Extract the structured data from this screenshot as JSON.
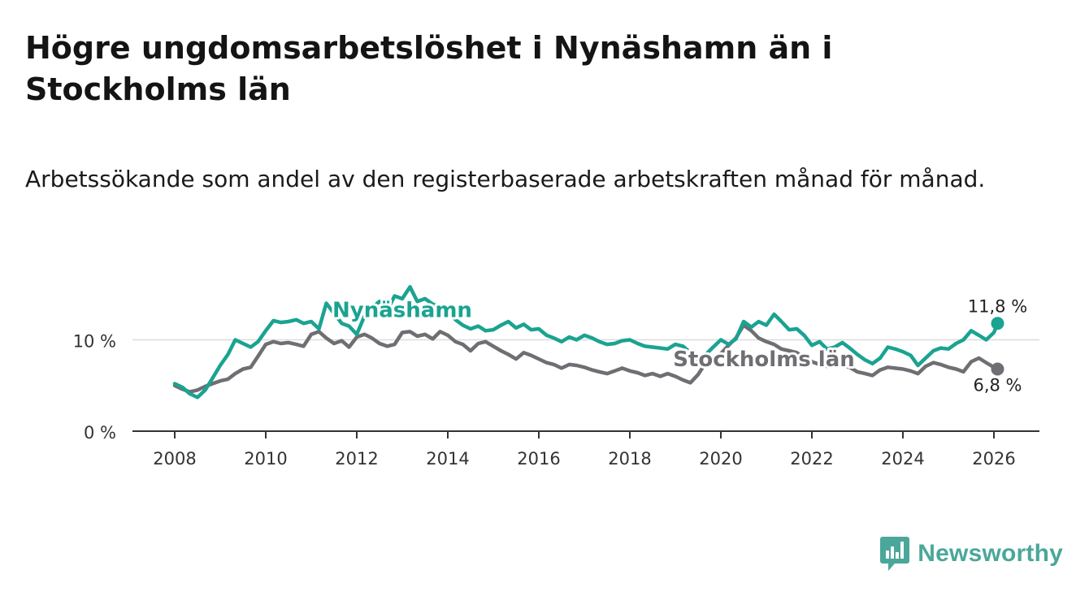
{
  "title": "Högre ungdomsarbetslöshet i Nynäshamn än i Stockholms län",
  "subtitle": "Arbetssökande som andel av den registerbaserade arbetskraften månad för månad.",
  "brand": {
    "name": "Newsworthy",
    "icon": "bar-chart-logo-icon",
    "color": "#4aa79a"
  },
  "colors": {
    "nynashamn": "#1aa391",
    "stockholm": "#6f6e73",
    "axis": "#333333",
    "grid": "#dddddd"
  },
  "chart_data": {
    "type": "line",
    "title": "Högre ungdomsarbetslöshet i Nynäshamn än i Stockholms län",
    "xlabel": "",
    "ylabel": "",
    "xlim": [
      2007.3,
      2027.0
    ],
    "ylim": [
      0,
      14
    ],
    "x_ticks": [
      2008,
      2010,
      2012,
      2014,
      2016,
      2018,
      2020,
      2022,
      2024,
      2026
    ],
    "y_ticks": [
      {
        "value": 0,
        "label": "0 %"
      },
      {
        "value": 10,
        "label": "10 %"
      }
    ],
    "grid": true,
    "legend": "inline labels",
    "series": [
      {
        "name": "Nynäshamn",
        "color": "#1aa391",
        "end_label": "11,8 %",
        "points": [
          [
            2008.0,
            5.2
          ],
          [
            2008.17,
            4.8
          ],
          [
            2008.33,
            4.1
          ],
          [
            2008.5,
            3.7
          ],
          [
            2008.67,
            4.5
          ],
          [
            2008.83,
            5.8
          ],
          [
            2009.0,
            7.2
          ],
          [
            2009.17,
            8.4
          ],
          [
            2009.33,
            10.0
          ],
          [
            2009.5,
            9.6
          ],
          [
            2009.67,
            9.2
          ],
          [
            2009.83,
            9.8
          ],
          [
            2010.0,
            11.0
          ],
          [
            2010.17,
            12.1
          ],
          [
            2010.33,
            11.9
          ],
          [
            2010.5,
            12.0
          ],
          [
            2010.67,
            12.2
          ],
          [
            2010.83,
            11.8
          ],
          [
            2011.0,
            12.0
          ],
          [
            2011.17,
            11.2
          ],
          [
            2011.33,
            14.0
          ],
          [
            2011.5,
            12.9
          ],
          [
            2011.67,
            11.8
          ],
          [
            2011.83,
            11.5
          ],
          [
            2012.0,
            10.6
          ],
          [
            2012.17,
            12.6
          ],
          [
            2012.33,
            13.5
          ],
          [
            2012.5,
            14.2
          ],
          [
            2012.67,
            13.2
          ],
          [
            2012.83,
            14.8
          ],
          [
            2013.0,
            14.5
          ],
          [
            2013.17,
            15.8
          ],
          [
            2013.33,
            14.2
          ],
          [
            2013.5,
            14.5
          ],
          [
            2013.67,
            13.9
          ],
          [
            2013.83,
            13.6
          ],
          [
            2014.0,
            13.2
          ],
          [
            2014.17,
            12.2
          ],
          [
            2014.33,
            11.6
          ],
          [
            2014.5,
            11.2
          ],
          [
            2014.67,
            11.5
          ],
          [
            2014.83,
            11.0
          ],
          [
            2015.0,
            11.1
          ],
          [
            2015.17,
            11.6
          ],
          [
            2015.33,
            12.0
          ],
          [
            2015.5,
            11.3
          ],
          [
            2015.67,
            11.7
          ],
          [
            2015.83,
            11.1
          ],
          [
            2016.0,
            11.2
          ],
          [
            2016.17,
            10.5
          ],
          [
            2016.33,
            10.2
          ],
          [
            2016.5,
            9.8
          ],
          [
            2016.67,
            10.3
          ],
          [
            2016.83,
            10.0
          ],
          [
            2017.0,
            10.5
          ],
          [
            2017.17,
            10.2
          ],
          [
            2017.33,
            9.8
          ],
          [
            2017.5,
            9.5
          ],
          [
            2017.67,
            9.6
          ],
          [
            2017.83,
            9.9
          ],
          [
            2018.0,
            10.0
          ],
          [
            2018.17,
            9.6
          ],
          [
            2018.33,
            9.3
          ],
          [
            2018.5,
            9.2
          ],
          [
            2018.67,
            9.1
          ],
          [
            2018.83,
            9.0
          ],
          [
            2019.0,
            9.5
          ],
          [
            2019.17,
            9.3
          ],
          [
            2019.33,
            8.6
          ],
          [
            2019.5,
            7.6
          ],
          [
            2019.67,
            8.4
          ],
          [
            2019.83,
            9.2
          ],
          [
            2020.0,
            10.0
          ],
          [
            2020.17,
            9.5
          ],
          [
            2020.33,
            10.1
          ],
          [
            2020.5,
            12.0
          ],
          [
            2020.67,
            11.4
          ],
          [
            2020.83,
            12.0
          ],
          [
            2021.0,
            11.6
          ],
          [
            2021.17,
            12.8
          ],
          [
            2021.33,
            12.0
          ],
          [
            2021.5,
            11.1
          ],
          [
            2021.67,
            11.2
          ],
          [
            2021.83,
            10.5
          ],
          [
            2022.0,
            9.4
          ],
          [
            2022.17,
            9.8
          ],
          [
            2022.33,
            9.0
          ],
          [
            2022.5,
            9.2
          ],
          [
            2022.67,
            9.7
          ],
          [
            2022.83,
            9.1
          ],
          [
            2023.0,
            8.4
          ],
          [
            2023.17,
            7.8
          ],
          [
            2023.33,
            7.4
          ],
          [
            2023.5,
            8.0
          ],
          [
            2023.67,
            9.2
          ],
          [
            2023.83,
            9.0
          ],
          [
            2024.0,
            8.7
          ],
          [
            2024.17,
            8.3
          ],
          [
            2024.33,
            7.2
          ],
          [
            2024.5,
            8.0
          ],
          [
            2024.67,
            8.8
          ],
          [
            2024.83,
            9.1
          ],
          [
            2025.0,
            9.0
          ],
          [
            2025.17,
            9.6
          ],
          [
            2025.33,
            10.0
          ],
          [
            2025.5,
            11.0
          ],
          [
            2025.67,
            10.5
          ],
          [
            2025.83,
            10.0
          ],
          [
            2026.0,
            10.8
          ],
          [
            2026.08,
            11.8
          ]
        ]
      },
      {
        "name": "Stockholms län",
        "color": "#6f6e73",
        "end_label": "6,8 %",
        "points": [
          [
            2008.0,
            5.0
          ],
          [
            2008.17,
            4.6
          ],
          [
            2008.33,
            4.3
          ],
          [
            2008.5,
            4.5
          ],
          [
            2008.67,
            4.9
          ],
          [
            2008.83,
            5.2
          ],
          [
            2009.0,
            5.5
          ],
          [
            2009.17,
            5.7
          ],
          [
            2009.33,
            6.3
          ],
          [
            2009.5,
            6.8
          ],
          [
            2009.67,
            7.0
          ],
          [
            2009.83,
            8.2
          ],
          [
            2010.0,
            9.5
          ],
          [
            2010.17,
            9.8
          ],
          [
            2010.33,
            9.6
          ],
          [
            2010.5,
            9.7
          ],
          [
            2010.67,
            9.5
          ],
          [
            2010.83,
            9.3
          ],
          [
            2011.0,
            10.6
          ],
          [
            2011.17,
            10.9
          ],
          [
            2011.33,
            10.2
          ],
          [
            2011.5,
            9.6
          ],
          [
            2011.67,
            9.9
          ],
          [
            2011.83,
            9.2
          ],
          [
            2012.0,
            10.3
          ],
          [
            2012.17,
            10.6
          ],
          [
            2012.33,
            10.2
          ],
          [
            2012.5,
            9.6
          ],
          [
            2012.67,
            9.3
          ],
          [
            2012.83,
            9.5
          ],
          [
            2013.0,
            10.8
          ],
          [
            2013.17,
            10.9
          ],
          [
            2013.33,
            10.4
          ],
          [
            2013.5,
            10.6
          ],
          [
            2013.67,
            10.1
          ],
          [
            2013.83,
            10.9
          ],
          [
            2014.0,
            10.5
          ],
          [
            2014.17,
            9.8
          ],
          [
            2014.33,
            9.5
          ],
          [
            2014.5,
            8.8
          ],
          [
            2014.67,
            9.6
          ],
          [
            2014.83,
            9.8
          ],
          [
            2015.0,
            9.3
          ],
          [
            2015.17,
            8.8
          ],
          [
            2015.33,
            8.4
          ],
          [
            2015.5,
            7.9
          ],
          [
            2015.67,
            8.6
          ],
          [
            2015.83,
            8.3
          ],
          [
            2016.0,
            7.9
          ],
          [
            2016.17,
            7.5
          ],
          [
            2016.33,
            7.3
          ],
          [
            2016.5,
            6.9
          ],
          [
            2016.67,
            7.3
          ],
          [
            2016.83,
            7.2
          ],
          [
            2017.0,
            7.0
          ],
          [
            2017.17,
            6.7
          ],
          [
            2017.33,
            6.5
          ],
          [
            2017.5,
            6.3
          ],
          [
            2017.67,
            6.6
          ],
          [
            2017.83,
            6.9
          ],
          [
            2018.0,
            6.6
          ],
          [
            2018.17,
            6.4
          ],
          [
            2018.33,
            6.1
          ],
          [
            2018.5,
            6.3
          ],
          [
            2018.67,
            6.0
          ],
          [
            2018.83,
            6.3
          ],
          [
            2019.0,
            6.0
          ],
          [
            2019.17,
            5.6
          ],
          [
            2019.33,
            5.3
          ],
          [
            2019.5,
            6.2
          ],
          [
            2019.67,
            7.5
          ],
          [
            2019.83,
            8.0
          ],
          [
            2020.0,
            8.5
          ],
          [
            2020.17,
            9.4
          ],
          [
            2020.33,
            10.2
          ],
          [
            2020.5,
            11.6
          ],
          [
            2020.67,
            11.0
          ],
          [
            2020.83,
            10.2
          ],
          [
            2021.0,
            9.8
          ],
          [
            2021.17,
            9.5
          ],
          [
            2021.33,
            9.0
          ],
          [
            2021.5,
            8.8
          ],
          [
            2021.67,
            8.6
          ],
          [
            2021.83,
            8.0
          ],
          [
            2022.0,
            7.6
          ],
          [
            2022.17,
            7.3
          ],
          [
            2022.33,
            7.1
          ],
          [
            2022.5,
            7.4
          ],
          [
            2022.67,
            7.2
          ],
          [
            2022.83,
            7.0
          ],
          [
            2023.0,
            6.5
          ],
          [
            2023.17,
            6.3
          ],
          [
            2023.33,
            6.1
          ],
          [
            2023.5,
            6.7
          ],
          [
            2023.67,
            7.0
          ],
          [
            2023.83,
            6.9
          ],
          [
            2024.0,
            6.8
          ],
          [
            2024.17,
            6.6
          ],
          [
            2024.33,
            6.3
          ],
          [
            2024.5,
            7.1
          ],
          [
            2024.67,
            7.5
          ],
          [
            2024.83,
            7.3
          ],
          [
            2025.0,
            7.0
          ],
          [
            2025.17,
            6.8
          ],
          [
            2025.33,
            6.5
          ],
          [
            2025.5,
            7.6
          ],
          [
            2025.67,
            8.0
          ],
          [
            2025.83,
            7.5
          ],
          [
            2026.0,
            7.0
          ],
          [
            2026.08,
            6.8
          ]
        ]
      }
    ],
    "annotations": [
      {
        "text": "Nynäshamn",
        "series": "Nynäshamn",
        "x": 2013.0,
        "y": 12.5
      },
      {
        "text": "Stockholms län",
        "series": "Stockholms län",
        "x": 2018.95,
        "y": 7.1
      }
    ]
  }
}
